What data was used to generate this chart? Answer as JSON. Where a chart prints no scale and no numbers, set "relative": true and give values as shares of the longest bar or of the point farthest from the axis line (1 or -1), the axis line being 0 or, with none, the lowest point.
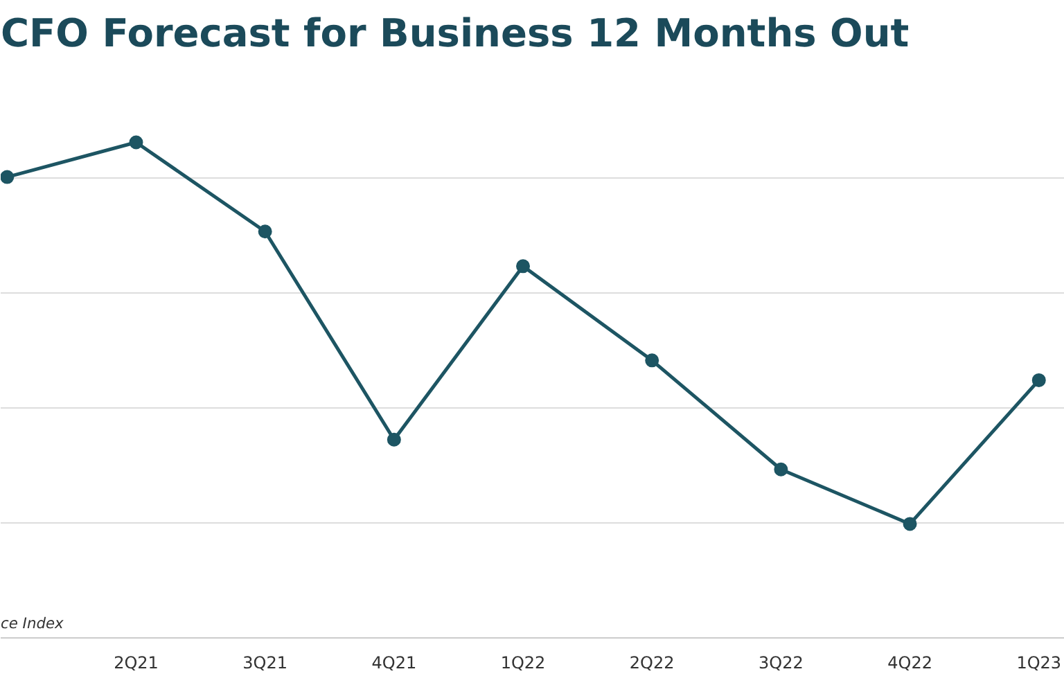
{
  "chart_data": {
    "type": "line",
    "title": "CFO Forecast for Business 12 Months Out",
    "categories": [
      null,
      "2Q21",
      "3Q21",
      "4Q21",
      "1Q22",
      "2Q22",
      "3Q22",
      "4Q22",
      "1Q23"
    ],
    "series": [
      {
        "color": "#1d5563",
        "values": [
          0.93,
          1,
          0.82,
          0.4,
          0.75,
          0.56,
          0.34,
          0.23,
          0.52
        ]
      }
    ],
    "relative": true,
    "grid": "y",
    "marker": "circle",
    "line_style": "solid",
    "annotations": [
      "ce Index"
    ]
  }
}
